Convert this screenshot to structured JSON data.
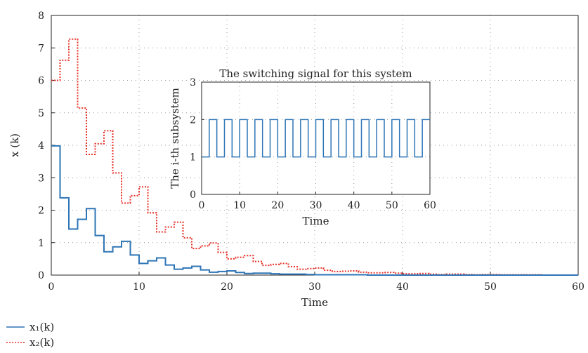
{
  "chart_data": [
    {
      "type": "line",
      "step": true,
      "title": "",
      "xlabel": "Time",
      "ylabel": "x (k)",
      "xlim": [
        0,
        60
      ],
      "ylim": [
        0,
        8
      ],
      "xticks": [
        "0",
        "10",
        "20",
        "30",
        "40",
        "50",
        "60"
      ],
      "yticks": [
        "0",
        "1",
        "2",
        "3",
        "4",
        "5",
        "6",
        "7",
        "8"
      ],
      "grid": "dotted",
      "legend_position": "below",
      "x": [
        0,
        1,
        2,
        3,
        4,
        5,
        6,
        7,
        8,
        9,
        10,
        11,
        12,
        13,
        14,
        15,
        16,
        17,
        18,
        19,
        20,
        21,
        22,
        23,
        24,
        25,
        26,
        27,
        28,
        29,
        30,
        31,
        32,
        33,
        34,
        35,
        36,
        37,
        38,
        39,
        40,
        41,
        42,
        43,
        44,
        45,
        46,
        47,
        48,
        49,
        50,
        51,
        52,
        53,
        54,
        55,
        56,
        57,
        58,
        59,
        60
      ],
      "series": [
        {
          "name": "x₁(k)",
          "color": "#2e75b6",
          "style": "solid",
          "values": [
            3.98,
            2.38,
            1.42,
            1.72,
            2.05,
            1.22,
            0.72,
            0.87,
            1.04,
            0.62,
            0.36,
            0.44,
            0.53,
            0.31,
            0.18,
            0.22,
            0.27,
            0.16,
            0.09,
            0.11,
            0.13,
            0.08,
            0.05,
            0.06,
            0.06,
            0.04,
            0.03,
            0.03,
            0.03,
            0.02,
            0.01,
            0.01,
            0.01,
            0.01,
            0.01,
            0.01,
            0.0,
            0.0,
            0.0,
            0.0,
            0.0,
            0.0,
            0.0,
            0.0,
            0.0,
            0.0,
            0.0,
            0.0,
            0.0,
            0.0,
            0.0,
            0.0,
            0.0,
            0.0,
            0.0,
            0.0,
            0.0,
            0.0,
            0.0,
            0.0,
            0.0
          ]
        },
        {
          "name": "x₂(k)",
          "color": "#e8332a",
          "style": "dotted",
          "values": [
            6.0,
            6.62,
            7.27,
            5.15,
            3.72,
            4.05,
            4.45,
            3.15,
            2.22,
            2.45,
            2.72,
            1.92,
            1.33,
            1.48,
            1.63,
            1.15,
            0.82,
            0.9,
            0.99,
            0.7,
            0.5,
            0.55,
            0.6,
            0.42,
            0.3,
            0.33,
            0.36,
            0.26,
            0.18,
            0.2,
            0.22,
            0.15,
            0.11,
            0.12,
            0.13,
            0.09,
            0.07,
            0.07,
            0.08,
            0.06,
            0.04,
            0.04,
            0.05,
            0.03,
            0.02,
            0.03,
            0.03,
            0.02,
            0.01,
            0.02,
            0.02,
            0.01,
            0.01,
            0.01,
            0.01,
            0.01,
            0.0,
            0.0,
            0.0,
            0.0,
            0.0
          ]
        }
      ]
    },
    {
      "type": "line",
      "step": true,
      "title": "The switching signal for this system",
      "xlabel": "Time",
      "ylabel": "The i-th subsystem",
      "xlim": [
        0,
        60
      ],
      "ylim": [
        0,
        3
      ],
      "xticks": [
        "0",
        "10",
        "20",
        "30",
        "40",
        "50",
        "60"
      ],
      "yticks": [
        "0",
        "1",
        "2",
        "3"
      ],
      "grid": "dotted",
      "series": [
        {
          "color": "#2e75b6",
          "pattern": "alternates between 1 and 2 every 2 time units",
          "x": [
            0,
            2,
            4,
            6,
            8,
            10,
            12,
            14,
            16,
            18,
            20,
            22,
            24,
            26,
            28,
            30,
            32,
            34,
            36,
            38,
            40,
            42,
            44,
            46,
            48,
            50,
            52,
            54,
            56,
            58,
            60
          ],
          "values": [
            1,
            2,
            1,
            2,
            1,
            2,
            1,
            2,
            1,
            2,
            1,
            2,
            1,
            2,
            1,
            2,
            1,
            2,
            1,
            2,
            1,
            2,
            1,
            2,
            1,
            2,
            1,
            2,
            1,
            2,
            2
          ]
        }
      ]
    }
  ]
}
